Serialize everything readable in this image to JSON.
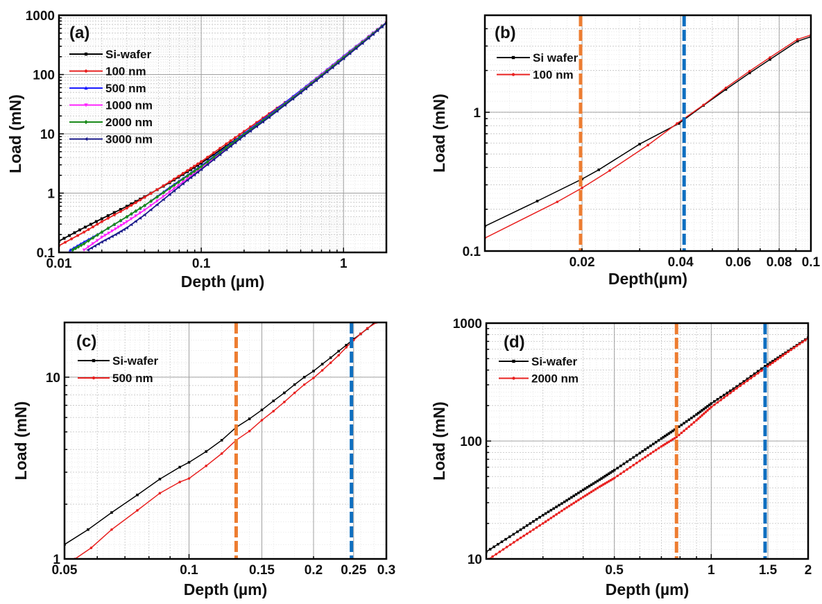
{
  "figure": {
    "title": ""
  },
  "chart_data": [
    {
      "id": "a",
      "type": "line",
      "panel_label": "(a)",
      "xlabel": "Depth (µm)",
      "ylabel": "Load (mN)",
      "xscale": "log",
      "yscale": "log",
      "xlim": [
        0.01,
        2
      ],
      "ylim": [
        0.1,
        1000
      ],
      "xticks": [
        {
          "v": 0.01,
          "label": "0.01"
        },
        {
          "v": 0.1,
          "label": "0.1"
        },
        {
          "v": 1,
          "label": "1"
        }
      ],
      "yticks": [
        {
          "v": 0.1,
          "label": "0.1"
        },
        {
          "v": 1,
          "label": "1"
        },
        {
          "v": 10,
          "label": "10"
        },
        {
          "v": 100,
          "label": "100"
        },
        {
          "v": 1000,
          "label": "1000"
        }
      ],
      "grid": true,
      "legend_position": "top-left",
      "vlines": [],
      "series": [
        {
          "name": "Si-wafer",
          "color": "#000000",
          "marker": "square",
          "points": [
            [
              0.01,
              0.155
            ],
            [
              0.014,
              0.24
            ],
            [
              0.02,
              0.37
            ],
            [
              0.03,
              0.6
            ],
            [
              0.04,
              0.87
            ],
            [
              0.06,
              1.5
            ],
            [
              0.08,
              2.3
            ],
            [
              0.1,
              3.2
            ],
            [
              0.15,
              6.3
            ],
            [
              0.2,
              10
            ],
            [
              0.3,
              20
            ],
            [
              0.5,
              50
            ],
            [
              0.7,
              95
            ],
            [
              1,
              190
            ],
            [
              1.5,
              420
            ],
            [
              2,
              750
            ]
          ]
        },
        {
          "name": "100 nm",
          "color": "#e8201f",
          "marker": "circle",
          "points": [
            [
              0.01,
              0.13
            ],
            [
              0.015,
              0.22
            ],
            [
              0.02,
              0.33
            ],
            [
              0.03,
              0.56
            ],
            [
              0.04,
              0.85
            ],
            [
              0.06,
              1.55
            ],
            [
              0.08,
              2.4
            ],
            [
              0.1,
              3.4
            ],
            [
              0.15,
              6.8
            ],
            [
              0.2,
              11
            ],
            [
              0.3,
              22
            ],
            [
              0.5,
              52
            ],
            [
              0.7,
              98
            ],
            [
              1,
              195
            ],
            [
              1.5,
              425
            ],
            [
              2,
              755
            ]
          ]
        },
        {
          "name": "500 nm",
          "color": "#1a1aff",
          "marker": "triangle-up",
          "points": [
            [
              0.012,
              0.11
            ],
            [
              0.015,
              0.15
            ],
            [
              0.02,
              0.22
            ],
            [
              0.03,
              0.4
            ],
            [
              0.04,
              0.62
            ],
            [
              0.06,
              1.25
            ],
            [
              0.08,
              2.0
            ],
            [
              0.1,
              2.9
            ],
            [
              0.15,
              6.0
            ],
            [
              0.2,
              10.2
            ],
            [
              0.3,
              21
            ],
            [
              0.5,
              54
            ],
            [
              0.7,
              102
            ],
            [
              1,
              205
            ],
            [
              1.5,
              440
            ],
            [
              2,
              760
            ]
          ]
        },
        {
          "name": "1000 nm",
          "color": "#ff22ff",
          "marker": "triangle-down",
          "points": [
            [
              0.015,
              0.11
            ],
            [
              0.02,
              0.18
            ],
            [
              0.025,
              0.25
            ],
            [
              0.03,
              0.33
            ],
            [
              0.04,
              0.52
            ],
            [
              0.06,
              1.05
            ],
            [
              0.08,
              1.75
            ],
            [
              0.1,
              2.6
            ],
            [
              0.15,
              5.6
            ],
            [
              0.2,
              9.6
            ],
            [
              0.3,
              20
            ],
            [
              0.5,
              52
            ],
            [
              0.7,
              100
            ],
            [
              1,
              200
            ],
            [
              1.5,
              435
            ],
            [
              2,
              755
            ]
          ]
        },
        {
          "name": "2000 nm",
          "color": "#1a8a1a",
          "marker": "diamond",
          "points": [
            [
              0.0125,
              0.11
            ],
            [
              0.015,
              0.14
            ],
            [
              0.02,
              0.22
            ],
            [
              0.03,
              0.4
            ],
            [
              0.04,
              0.62
            ],
            [
              0.06,
              1.2
            ],
            [
              0.08,
              1.95
            ],
            [
              0.1,
              2.8
            ],
            [
              0.15,
              5.8
            ],
            [
              0.2,
              9.8
            ],
            [
              0.3,
              20
            ],
            [
              0.5,
              51
            ],
            [
              0.7,
              97
            ],
            [
              1,
              195
            ],
            [
              1.5,
              425
            ],
            [
              2,
              750
            ]
          ]
        },
        {
          "name": "3000 nm",
          "color": "#1a1a8a",
          "marker": "triangle-left",
          "points": [
            [
              0.016,
              0.11
            ],
            [
              0.02,
              0.15
            ],
            [
              0.025,
              0.2
            ],
            [
              0.03,
              0.26
            ],
            [
              0.04,
              0.43
            ],
            [
              0.06,
              0.95
            ],
            [
              0.08,
              1.65
            ],
            [
              0.1,
              2.5
            ],
            [
              0.15,
              5.4
            ],
            [
              0.2,
              9.3
            ],
            [
              0.3,
              19
            ],
            [
              0.5,
              49
            ],
            [
              0.7,
              93
            ],
            [
              1,
              185
            ],
            [
              1.5,
              410
            ],
            [
              2,
              740
            ]
          ]
        }
      ]
    },
    {
      "id": "b",
      "type": "line",
      "panel_label": "(b)",
      "xlabel": "Depth(µm)",
      "ylabel": "Load (mN)",
      "xscale": "log",
      "yscale": "log",
      "xlim": [
        0.0101,
        0.1
      ],
      "ylim": [
        0.1,
        5
      ],
      "xticks": [
        {
          "v": 0.02,
          "label": "0.02"
        },
        {
          "v": 0.04,
          "label": "0.04"
        },
        {
          "v": 0.06,
          "label": "0.06"
        },
        {
          "v": 0.08,
          "label": "0.08"
        },
        {
          "v": 0.1,
          "label": "0.1"
        }
      ],
      "yticks": [
        {
          "v": 0.1,
          "label": "0.1"
        },
        {
          "v": 1,
          "label": "1"
        }
      ],
      "grid": true,
      "legend_position": "top-left",
      "vlines": [
        {
          "x": 0.0198,
          "color": "#ed7d31"
        },
        {
          "x": 0.041,
          "color": "#0f6fc0"
        }
      ],
      "series": [
        {
          "name": "Si wafer",
          "color": "#000000",
          "marker": "square",
          "points": [
            [
              0.0101,
              0.151
            ],
            [
              0.0146,
              0.229
            ],
            [
              0.02,
              0.33
            ],
            [
              0.0225,
              0.385
            ],
            [
              0.03,
              0.59
            ],
            [
              0.0395,
              0.83
            ],
            [
              0.047,
              1.12
            ],
            [
              0.055,
              1.46
            ],
            [
              0.065,
              1.92
            ],
            [
              0.075,
              2.4
            ],
            [
              0.091,
              3.25
            ],
            [
              0.1,
              3.5
            ]
          ]
        },
        {
          "name": "100 nm",
          "color": "#e8201f",
          "marker": "circle",
          "points": [
            [
              0.0101,
              0.124
            ],
            [
              0.0168,
              0.226
            ],
            [
              0.02,
              0.285
            ],
            [
              0.0243,
              0.38
            ],
            [
              0.0318,
              0.58
            ],
            [
              0.039,
              0.83
            ],
            [
              0.047,
              1.13
            ],
            [
              0.055,
              1.5
            ],
            [
              0.065,
              1.98
            ],
            [
              0.075,
              2.48
            ],
            [
              0.091,
              3.35
            ],
            [
              0.1,
              3.6
            ]
          ]
        }
      ]
    },
    {
      "id": "c",
      "type": "line",
      "panel_label": "(c)",
      "xlabel": "Depth (µm)",
      "ylabel": "Load (mN)",
      "xscale": "log",
      "yscale": "log",
      "xlim": [
        0.05,
        0.3
      ],
      "ylim": [
        1,
        20
      ],
      "xticks": [
        {
          "v": 0.05,
          "label": "0.05"
        },
        {
          "v": 0.1,
          "label": "0.1"
        },
        {
          "v": 0.15,
          "label": "0.15"
        },
        {
          "v": 0.2,
          "label": "0.2"
        },
        {
          "v": 0.25,
          "label": "0.25"
        },
        {
          "v": 0.3,
          "label": "0.3"
        }
      ],
      "yticks": [
        {
          "v": 1,
          "label": "1"
        },
        {
          "v": 10,
          "label": "10"
        }
      ],
      "grid": true,
      "legend_position": "top-left",
      "vlines": [
        {
          "x": 0.13,
          "color": "#ed7d31"
        },
        {
          "x": 0.247,
          "color": "#0f6fc0"
        }
      ],
      "series": [
        {
          "name": "Si-wafer",
          "color": "#000000",
          "marker": "square",
          "points": [
            [
              0.05,
              1.2
            ],
            [
              0.057,
              1.45
            ],
            [
              0.065,
              1.8
            ],
            [
              0.075,
              2.25
            ],
            [
              0.085,
              2.75
            ],
            [
              0.095,
              3.2
            ],
            [
              0.1,
              3.4
            ],
            [
              0.11,
              3.9
            ],
            [
              0.12,
              4.5
            ],
            [
              0.13,
              5.3
            ],
            [
              0.14,
              5.9
            ],
            [
              0.15,
              6.6
            ],
            [
              0.16,
              7.4
            ],
            [
              0.17,
              8.2
            ],
            [
              0.18,
              9.1
            ],
            [
              0.19,
              10
            ],
            [
              0.2,
              10.8
            ],
            [
              0.21,
              11.8
            ],
            [
              0.22,
              12.8
            ],
            [
              0.23,
              13.9
            ],
            [
              0.24,
              15
            ],
            [
              0.25,
              16.2
            ],
            [
              0.26,
              17.3
            ],
            [
              0.27,
              18.5
            ],
            [
              0.281,
              20
            ]
          ]
        },
        {
          "name": "500 nm",
          "color": "#e8201f",
          "marker": "circle",
          "points": [
            [
              0.053,
              1.0
            ],
            [
              0.058,
              1.15
            ],
            [
              0.065,
              1.45
            ],
            [
              0.075,
              1.85
            ],
            [
              0.085,
              2.3
            ],
            [
              0.095,
              2.65
            ],
            [
              0.1,
              2.77
            ],
            [
              0.11,
              3.25
            ],
            [
              0.12,
              3.8
            ],
            [
              0.13,
              4.5
            ],
            [
              0.14,
              5.05
            ],
            [
              0.15,
              5.8
            ],
            [
              0.16,
              6.5
            ],
            [
              0.17,
              7.3
            ],
            [
              0.18,
              8.2
            ],
            [
              0.19,
              9.1
            ],
            [
              0.2,
              9.9
            ],
            [
              0.21,
              10.9
            ],
            [
              0.22,
              12
            ],
            [
              0.23,
              13.2
            ],
            [
              0.24,
              14.6
            ],
            [
              0.25,
              16
            ],
            [
              0.26,
              17.3
            ],
            [
              0.27,
              18.6
            ],
            [
              0.284,
              20
            ]
          ]
        }
      ]
    },
    {
      "id": "d",
      "type": "line",
      "panel_label": "(d)",
      "xlabel": "Depth (µm)",
      "ylabel": "Load (mN)",
      "xscale": "log",
      "yscale": "log",
      "xlim": [
        0.2,
        2
      ],
      "ylim": [
        10,
        1000
      ],
      "xticks": [
        {
          "v": 0.5,
          "label": "0.5"
        },
        {
          "v": 1,
          "label": "1"
        },
        {
          "v": 1.5,
          "label": "1.5"
        },
        {
          "v": 2,
          "label": "2"
        }
      ],
      "yticks": [
        {
          "v": 10,
          "label": "10"
        },
        {
          "v": 100,
          "label": "100"
        },
        {
          "v": 1000,
          "label": "1000"
        }
      ],
      "grid": true,
      "legend_position": "top-left",
      "vlines": [
        {
          "x": 0.78,
          "color": "#ed7d31"
        },
        {
          "x": 1.47,
          "color": "#0f6fc0"
        }
      ],
      "series": [
        {
          "name": "Si-wafer",
          "color": "#000000",
          "marker": "square",
          "points": [
            [
              0.2,
              11.5
            ],
            [
              0.25,
              17
            ],
            [
              0.3,
              23.5
            ],
            [
              0.35,
              30.5
            ],
            [
              0.4,
              38.5
            ],
            [
              0.45,
              47
            ],
            [
              0.5,
              56.6
            ],
            [
              0.6,
              79
            ],
            [
              0.7,
              105
            ],
            [
              0.78,
              128
            ],
            [
              0.9,
              168
            ],
            [
              1,
              208
            ],
            [
              1.2,
              290
            ],
            [
              1.47,
              432
            ],
            [
              1.7,
              560
            ],
            [
              2,
              752
            ]
          ]
        },
        {
          "name": "2000 nm",
          "color": "#e8201f",
          "marker": "circle",
          "points": [
            [
              0.204,
              10
            ],
            [
              0.25,
              14.5
            ],
            [
              0.3,
              20
            ],
            [
              0.35,
              26.5
            ],
            [
              0.4,
              33.5
            ],
            [
              0.45,
              41
            ],
            [
              0.5,
              48.5
            ],
            [
              0.6,
              68
            ],
            [
              0.7,
              90
            ],
            [
              0.78,
              108
            ],
            [
              0.9,
              150
            ],
            [
              1,
              194
            ],
            [
              1.2,
              280
            ],
            [
              1.47,
              415
            ],
            [
              1.7,
              550
            ],
            [
              2,
              745
            ]
          ]
        }
      ]
    }
  ]
}
